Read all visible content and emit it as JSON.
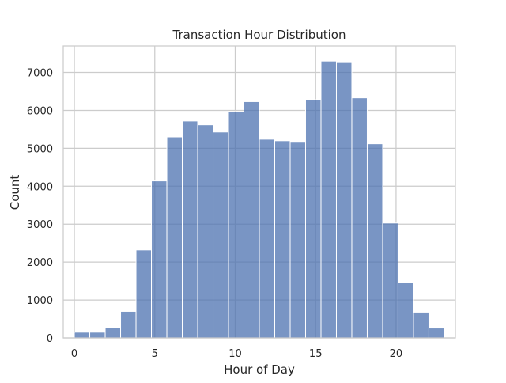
{
  "chart_data": {
    "type": "bar",
    "title": "Transaction Hour Distribution",
    "xlabel": "Hour of Day",
    "ylabel": "Count",
    "xlim": [
      -0.69,
      23.69
    ],
    "ylim": [
      0,
      7700
    ],
    "grid": true,
    "xticks": [
      0,
      5,
      10,
      15,
      20
    ],
    "yticks": [
      0,
      1000,
      2000,
      3000,
      4000,
      5000,
      6000,
      7000
    ],
    "bin_edges": [
      0,
      0.9583,
      1.9167,
      2.875,
      3.8333,
      4.7917,
      5.75,
      6.7083,
      7.6667,
      8.625,
      9.5833,
      10.5417,
      11.5,
      12.4583,
      13.4167,
      14.375,
      15.3333,
      16.2917,
      17.25,
      18.2083,
      19.1667,
      20.125,
      21.0833,
      22.0417,
      23
    ],
    "values": [
      150,
      150,
      270,
      700,
      2320,
      4140,
      5300,
      5720,
      5620,
      5430,
      5970,
      6230,
      5240,
      5200,
      5160,
      6280,
      7300,
      7280,
      6330,
      5120,
      3030,
      1460,
      680,
      260
    ],
    "colors": {
      "bar_fill": "#4c72b0",
      "bar_edge": "#ffffff",
      "grid": "#cccccc",
      "axes_edge": "#cccccc",
      "background": "#ffffff"
    }
  }
}
